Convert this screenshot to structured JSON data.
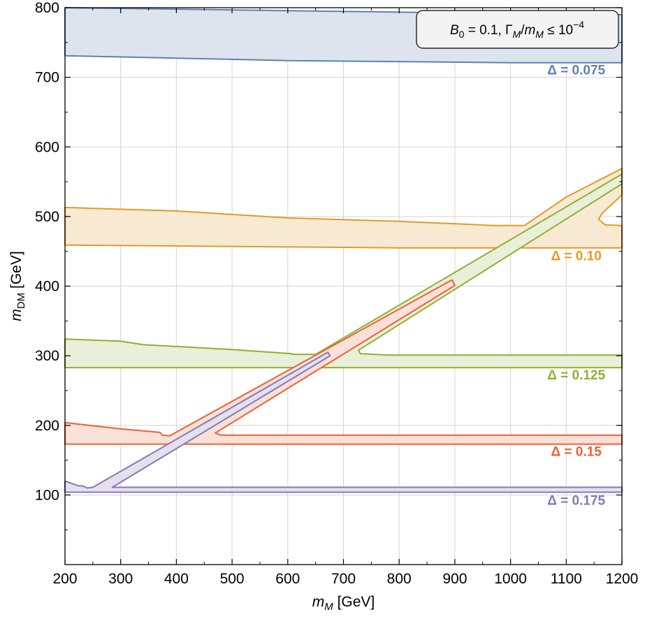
{
  "chart_data": {
    "type": "area",
    "xlabel": {
      "var": "m",
      "sub": "M",
      "unit": " [GeV]"
    },
    "ylabel": {
      "var": "m",
      "sub": "DM",
      "unit": " [GeV]"
    },
    "xlim": [
      200,
      1200
    ],
    "ylim": [
      0,
      800
    ],
    "x_ticks": [
      "200",
      "300",
      "400",
      "500",
      "600",
      "700",
      "800",
      "900",
      "1000",
      "1100",
      "1200"
    ],
    "y_ticks": [
      "100",
      "200",
      "300",
      "400",
      "500",
      "600",
      "700",
      "800"
    ],
    "grid": true,
    "legend": {
      "position": "top-right",
      "parts": [
        "B",
        "0",
        " = 0.1, Γ",
        "M",
        "/m",
        "M",
        " ≤ 10",
        "−4"
      ]
    },
    "series": [
      {
        "name": "Δ = 0.075",
        "color": "#5e81b5",
        "fill": "#dde4ee",
        "regions": [
          [
            [
              200,
              800
            ],
            [
              950,
              792
            ],
            [
              1200,
              790
            ],
            [
              1200,
              721
            ],
            [
              1000,
              721
            ],
            [
              600,
              724
            ],
            [
              200,
              731
            ]
          ]
        ]
      },
      {
        "name": "Δ = 0.10",
        "color": "#e19c24",
        "fill": "#f7e9d2",
        "regions": [
          [
            [
              200,
              513
            ],
            [
              400,
              508
            ],
            [
              600,
              498
            ],
            [
              800,
              493
            ],
            [
              945,
              488
            ],
            [
              968,
              487
            ],
            [
              1025,
              487
            ],
            [
              1100,
              528
            ],
            [
              1200,
              569
            ],
            [
              1200,
              531
            ],
            [
              1165,
              505
            ],
            [
              1158,
              496
            ],
            [
              1170,
              488
            ],
            [
              1200,
              487
            ],
            [
              1200,
              455
            ],
            [
              800,
              455
            ],
            [
              200,
              459
            ]
          ]
        ]
      },
      {
        "name": "Δ = 0.125",
        "color": "#8fb032",
        "fill": "#e9efd8",
        "regions": [
          [
            [
              200,
              324
            ],
            [
              300,
              321
            ],
            [
              340,
              316
            ],
            [
              500,
              309
            ],
            [
              605,
              303
            ],
            [
              610,
              302
            ],
            [
              650,
              302
            ],
            [
              1200,
              561
            ],
            [
              1200,
              547
            ],
            [
              727,
              308
            ],
            [
              730,
              303
            ],
            [
              780,
              301
            ],
            [
              1200,
              301
            ],
            [
              1200,
              283
            ],
            [
              200,
              283
            ]
          ]
        ]
      },
      {
        "name": "Δ = 0.15",
        "color": "#eb6235",
        "fill": "#f9e1d8",
        "regions": [
          [
            [
              200,
              204
            ],
            [
              300,
              195
            ],
            [
              370,
              190
            ],
            [
              375,
              186
            ],
            [
              388,
              185
            ],
            [
              895,
              409
            ],
            [
              900,
              401
            ],
            [
              470,
              189
            ],
            [
              480,
              186
            ],
            [
              520,
              186
            ],
            [
              1200,
              186
            ],
            [
              1200,
              173
            ],
            [
              200,
              173
            ]
          ]
        ]
      },
      {
        "name": "Δ = 0.175",
        "color": "#8778b3",
        "fill": "#e4e1ef",
        "regions": [
          [
            [
              200,
              120
            ],
            [
              225,
              113
            ],
            [
              232,
              113
            ],
            [
              240,
              110
            ],
            [
              250,
              111
            ],
            [
              672,
              305
            ],
            [
              676,
              300
            ],
            [
              285,
              111
            ],
            [
              300,
              111
            ],
            [
              1200,
              111
            ],
            [
              1200,
              104
            ],
            [
              200,
              104
            ]
          ]
        ]
      }
    ],
    "annotations": [
      {
        "text": "Δ = 0.075",
        "x": 1118,
        "y": 704,
        "color": "#5e81b5"
      },
      {
        "text": "Δ = 0.10",
        "x": 1118,
        "y": 437,
        "color": "#e19c24"
      },
      {
        "text": "Δ = 0.125",
        "x": 1118,
        "y": 266,
        "color": "#8fb032"
      },
      {
        "text": "Δ = 0.15",
        "x": 1118,
        "y": 156,
        "color": "#eb6235"
      },
      {
        "text": "Δ = 0.175",
        "x": 1118,
        "y": 86,
        "color": "#8778b3"
      }
    ]
  }
}
